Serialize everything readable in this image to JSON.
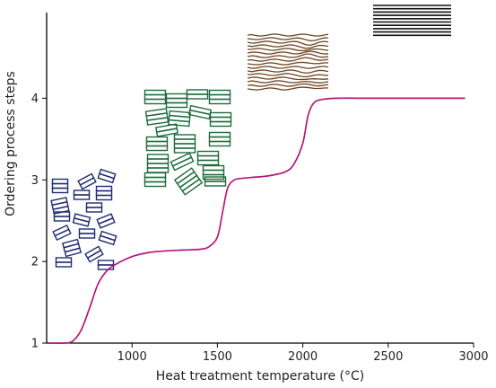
{
  "chart_data": {
    "type": "line",
    "xlabel": "Heat treatment temperature (°C)",
    "ylabel": "Ordering process steps",
    "xlim": [
      500,
      3000
    ],
    "ylim": [
      1,
      5.05
    ],
    "x_ticks": [
      1000,
      1500,
      2000,
      2500,
      3000
    ],
    "y_ticks": [
      1,
      2,
      3,
      4
    ],
    "grid": false,
    "legend": "none",
    "series": [
      {
        "color": "#b5177e",
        "x": [
          520,
          600,
          650,
          700,
          750,
          800,
          850,
          900,
          1000,
          1100,
          1200,
          1300,
          1400,
          1450,
          1500,
          1530,
          1560,
          1600,
          1650,
          1700,
          1800,
          1900,
          1950,
          2000,
          2030,
          2060,
          2100,
          2200,
          2400,
          2600,
          2800,
          2950
        ],
        "y": [
          1.0,
          1.0,
          1.02,
          1.15,
          1.42,
          1.72,
          1.88,
          1.96,
          2.06,
          2.11,
          2.13,
          2.14,
          2.15,
          2.18,
          2.3,
          2.6,
          2.9,
          3.0,
          3.02,
          3.03,
          3.05,
          3.1,
          3.2,
          3.45,
          3.78,
          3.93,
          3.98,
          4.0,
          4.0,
          4.0,
          4.0,
          4.0
        ]
      }
    ]
  },
  "colors": {
    "curve": "#b5177e",
    "stage1": "#1e2d6e",
    "stage2": "#1e6b3a",
    "stage3": "#6b4420",
    "stage4": "#111111"
  },
  "illustrations": [
    {
      "name": "stage1-random-stacks",
      "color_key": "stage1"
    },
    {
      "name": "stage2-columnar-stacks",
      "color_key": "stage2"
    },
    {
      "name": "stage3-wrinkled-layers",
      "color_key": "stage3"
    },
    {
      "name": "stage4-graphite-layers",
      "color_key": "stage4"
    }
  ]
}
